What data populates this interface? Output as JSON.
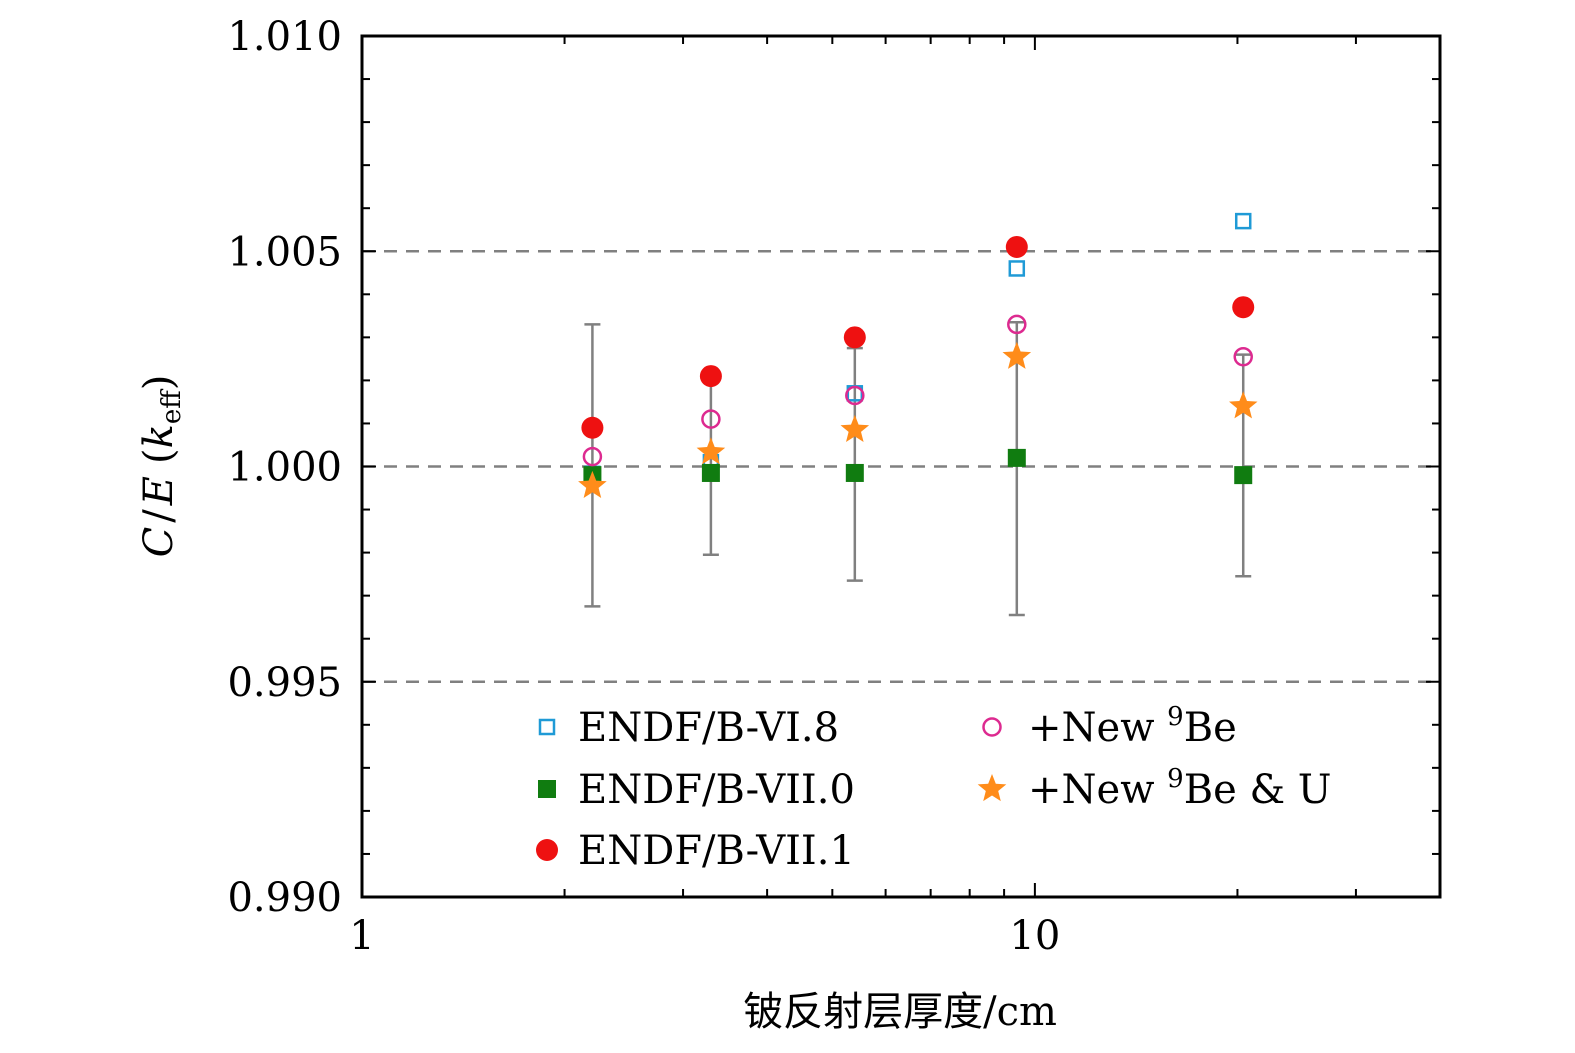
{
  "chart_data": {
    "type": "scatter",
    "x_scale": "log",
    "xlim": [
      1,
      40
    ],
    "ylim": [
      0.99,
      1.01
    ],
    "xlabel": "铍反射层厚度/cm",
    "ylabel": {
      "C": "C",
      "slash": "/",
      "E": "E",
      "open": "(",
      "k": "k",
      "sub": "eff",
      "close": ")"
    },
    "x_ticks": [
      {
        "value": 1,
        "label": "1"
      },
      {
        "value": 10,
        "label": "10"
      }
    ],
    "y_ticks": [
      {
        "value": 0.99,
        "label": "0.990"
      },
      {
        "value": 0.995,
        "label": "0.995"
      },
      {
        "value": 1.0,
        "label": "1.000"
      },
      {
        "value": 1.005,
        "label": "1.005"
      },
      {
        "value": 1.01,
        "label": "1.010"
      }
    ],
    "reference_lines": [
      0.995,
      1.0,
      1.005
    ],
    "x": [
      2.2,
      3.3,
      5.4,
      9.4,
      20.4
    ],
    "error_bars": [
      {
        "x": 2.2,
        "low": 0.99675,
        "high": 1.0033
      },
      {
        "x": 3.3,
        "low": 0.99795,
        "high": 1.002
      },
      {
        "x": 5.4,
        "low": 0.99735,
        "high": 1.00275
      },
      {
        "x": 9.4,
        "low": 0.99655,
        "high": 1.00335
      },
      {
        "x": 20.4,
        "low": 0.99745,
        "high": 1.0026
      }
    ],
    "series": [
      {
        "name": "ENDF/B-VI.8",
        "marker": "open-square",
        "color": "#1f9ad6",
        "values": [
          0.99983,
          1.0001,
          1.0017,
          1.0046,
          1.0057
        ]
      },
      {
        "name": "ENDF/B-VII.0",
        "marker": "filled-square",
        "color": "#107c10",
        "values": [
          0.9998,
          0.99985,
          0.99985,
          1.0002,
          0.9998
        ]
      },
      {
        "name": "ENDF/B-VII.1",
        "marker": "filled-circle",
        "color": "#ee1111",
        "values": [
          1.0009,
          1.0021,
          1.003,
          1.0051,
          1.0037
        ]
      },
      {
        "name": "+New 9Be",
        "marker": "open-circle",
        "color": "#dd2a90",
        "values": [
          1.00023,
          1.0011,
          1.00165,
          1.0033,
          1.00255
        ]
      },
      {
        "name": "+New 9Be & U",
        "marker": "star",
        "color": "#ff8c1a",
        "values": [
          0.99955,
          1.00033,
          1.00085,
          1.00255,
          1.0014
        ]
      }
    ],
    "legend": {
      "placement": "bottom-inside",
      "items": [
        {
          "prefix": "ENDF/B-VI.8",
          "sup": "",
          "suffix": ""
        },
        {
          "prefix": "ENDF/B-VII.0",
          "sup": "",
          "suffix": ""
        },
        {
          "prefix": "ENDF/B-VII.1",
          "sup": "",
          "suffix": ""
        },
        {
          "prefix": "+New ",
          "sup": "9",
          "suffix": "Be"
        },
        {
          "prefix": "+New ",
          "sup": "9",
          "suffix": "Be & U"
        }
      ]
    },
    "grid": false,
    "colors": {
      "axis": "#000000",
      "reference": "#808080",
      "error_bar": "#808080"
    }
  }
}
